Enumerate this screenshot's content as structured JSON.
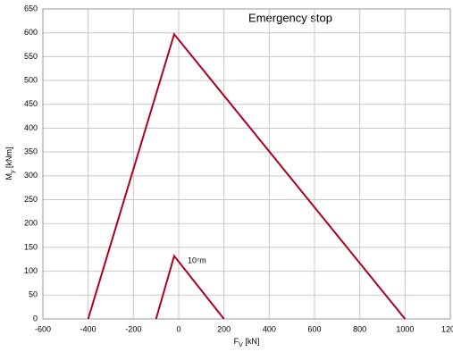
{
  "chart_data": {
    "type": "line",
    "title": "Emergency stop",
    "annotations": [
      "10⁷m"
    ],
    "x_label": [
      "F",
      "V",
      " [kN]"
    ],
    "y_label": [
      "M",
      "y",
      " [kNm]"
    ],
    "series": [
      {
        "color": "#b00020",
        "x": [
          -400,
          -20,
          1000
        ],
        "values": [
          0,
          597,
          0
        ]
      },
      {
        "color": "#b00020",
        "x": [
          -100,
          -20,
          200
        ],
        "values": [
          0,
          132,
          0
        ]
      }
    ],
    "xlim": [
      -600,
      1200
    ],
    "xticks": [
      -600,
      -400,
      -200,
      0,
      200,
      400,
      600,
      800,
      1000,
      1200
    ],
    "ylim": [
      0,
      650
    ],
    "yticks": [
      0,
      50,
      100,
      150,
      200,
      250,
      300,
      350,
      400,
      450,
      500,
      550,
      600,
      650
    ],
    "grid": true
  }
}
